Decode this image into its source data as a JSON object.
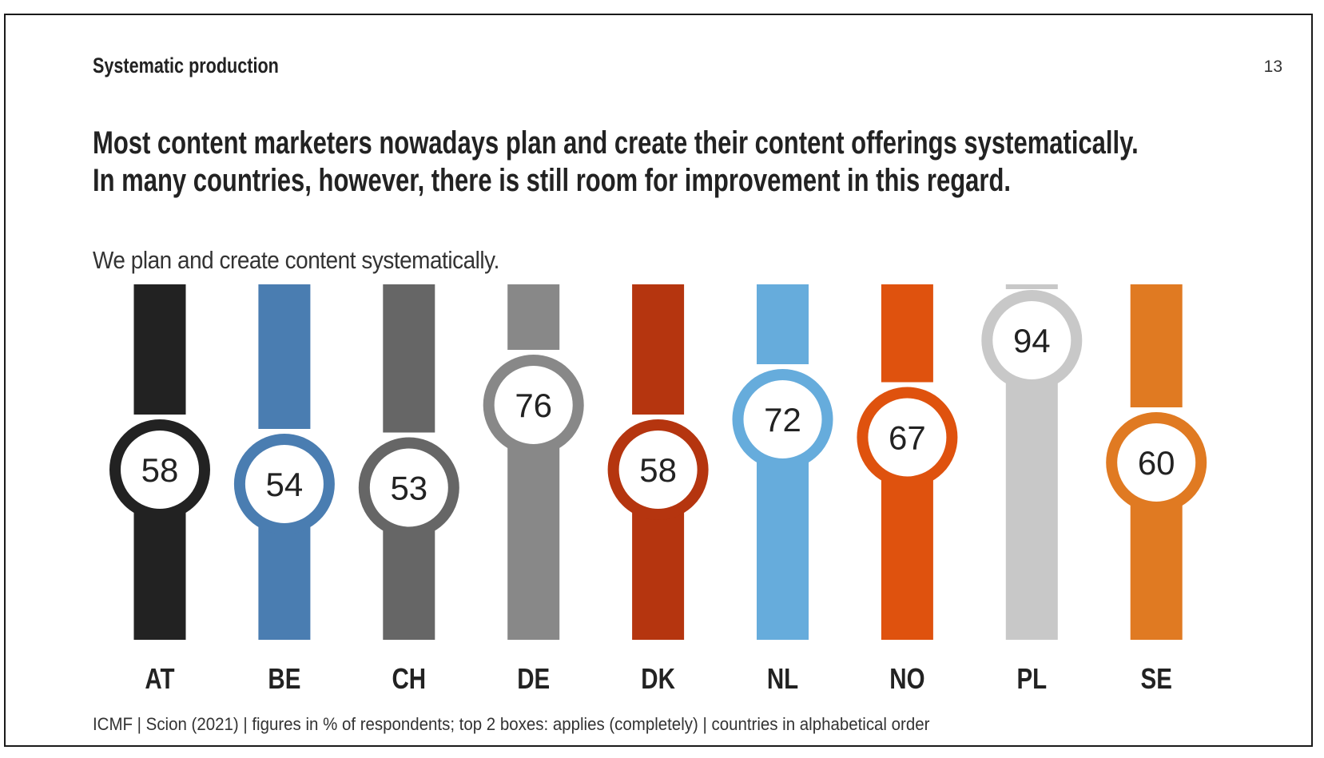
{
  "section_title": "Systematic production",
  "page_number": "13",
  "headline": {
    "line1": "Most content marketers nowadays plan and create their content offerings systematically.",
    "line2": "In many countries, however, there is still room for improvement in this regard."
  },
  "footer": "ICMF | Scion (2021) | figures in % of respondents; top 2 boxes: applies (completely) | countries in alphabetical order",
  "chart_data": {
    "type": "bar",
    "title": "We plan and create content systematically.",
    "xlabel": "",
    "ylabel": "% of respondents",
    "ylim": [
      0,
      100
    ],
    "grid": false,
    "categories": [
      "AT",
      "BE",
      "CH",
      "DE",
      "DK",
      "NL",
      "NO",
      "PL",
      "SE"
    ],
    "values": [
      58,
      54,
      53,
      76,
      58,
      72,
      67,
      94,
      60
    ],
    "colors": [
      "#222222",
      "#4a7db1",
      "#666666",
      "#888888",
      "#b5350f",
      "#66acdc",
      "#df520e",
      "#c8c8c8",
      "#e07a22"
    ]
  }
}
